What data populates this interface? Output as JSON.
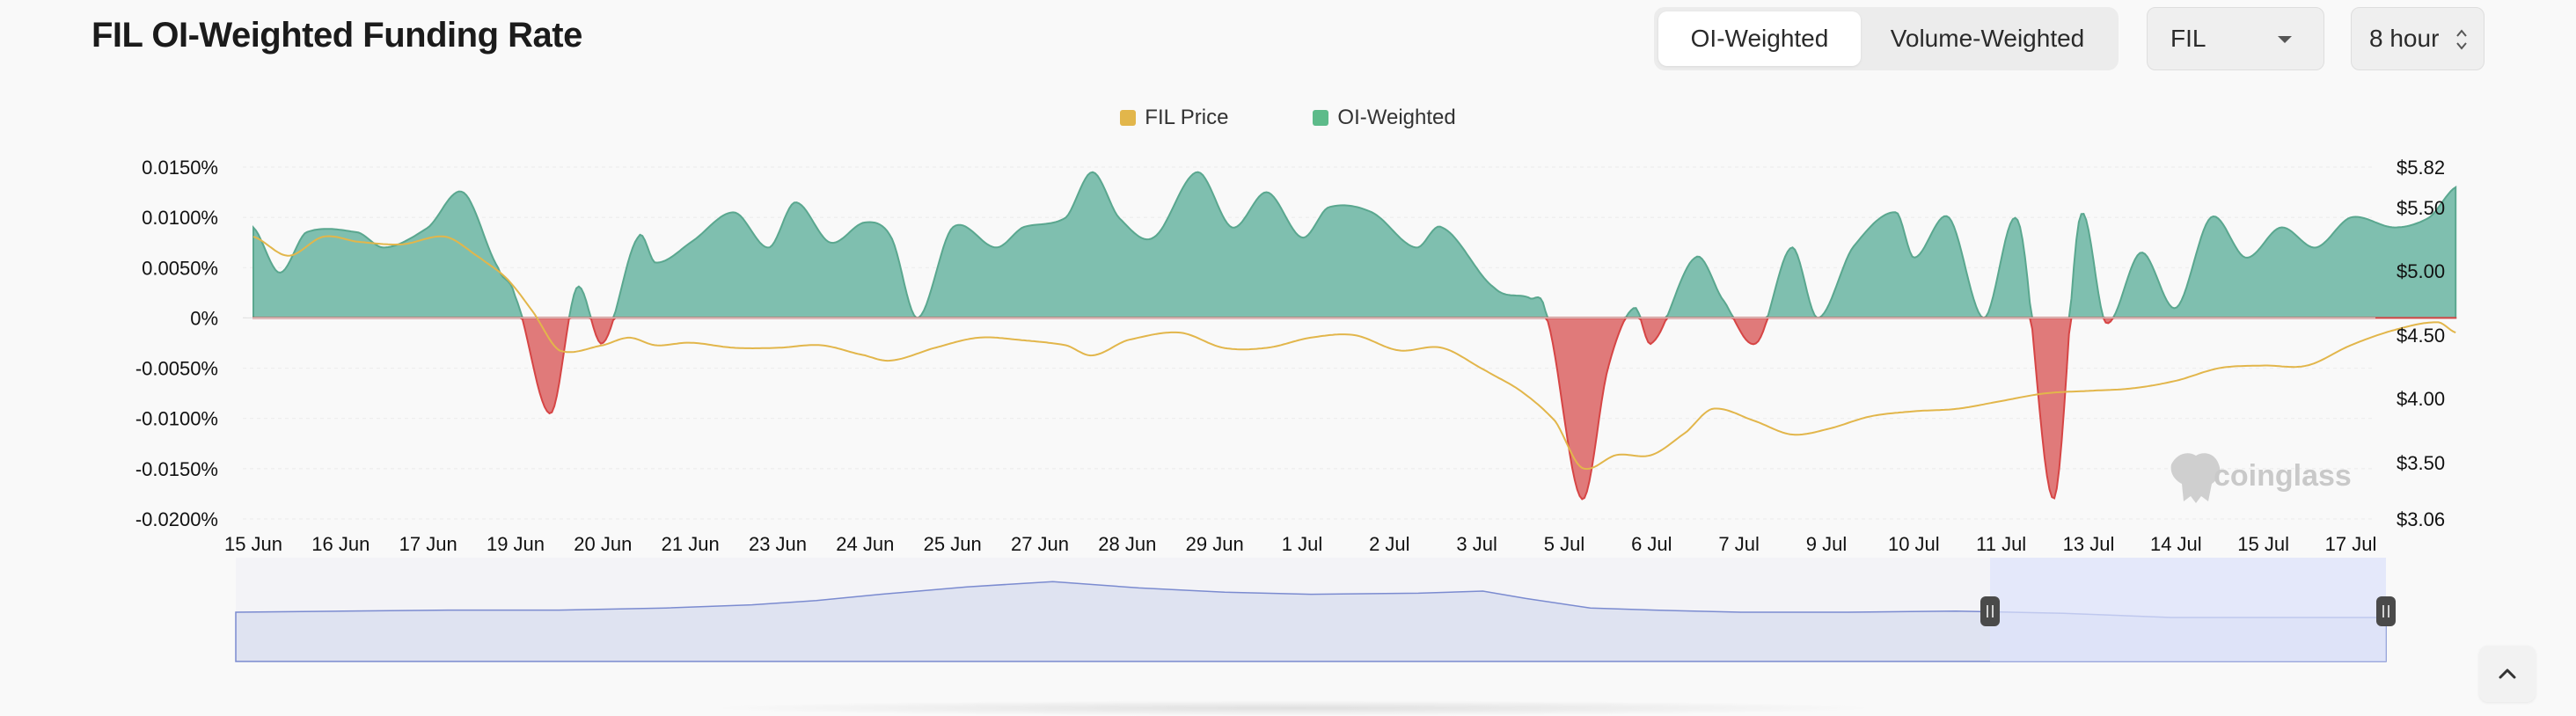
{
  "header": {
    "title": "FIL OI-Weighted Funding Rate",
    "toggle": {
      "options": [
        "OI-Weighted",
        "Volume-Weighted"
      ],
      "selected": "OI-Weighted"
    },
    "coin_select": "FIL",
    "interval_select": "8 hour"
  },
  "watermark": "coinglass",
  "colors": {
    "positive_fill": "#7fbfaf",
    "positive_line": "#5aa78f",
    "negative_fill": "#e07a7a",
    "negative_line": "#d64545",
    "price_line": "#e2b64b",
    "navigator_fill": "#dfe3f1",
    "navigator_line": "#7b8bd0",
    "navigator_window": "#dde2fb"
  },
  "icons": {
    "coin_caret": "caret-down-icon",
    "interval_stepper": "up-down-stepper-icon",
    "scroll_top": "chevron-up-icon",
    "logo": "coinglass-logo-icon"
  },
  "chart_data": {
    "type": "area",
    "legend": [
      {
        "name": "FIL Price",
        "color": "#e2b64b"
      },
      {
        "name": "OI-Weighted",
        "color": "#5dbb8a"
      }
    ],
    "x": [
      "15 Jun",
      "16 Jun",
      "17 Jun",
      "19 Jun",
      "20 Jun",
      "21 Jun",
      "23 Jun",
      "24 Jun",
      "25 Jun",
      "27 Jun",
      "28 Jun",
      "29 Jun",
      "1 Jul",
      "2 Jul",
      "3 Jul",
      "5 Jul",
      "6 Jul",
      "7 Jul",
      "9 Jul",
      "10 Jul",
      "11 Jul",
      "13 Jul",
      "14 Jul",
      "15 Jul",
      "17 Jul"
    ],
    "y_left_ticks": [
      "0.0150%",
      "0.0100%",
      "0.0050%",
      "0%",
      "-0.0050%",
      "-0.0100%",
      "-0.0150%",
      "-0.0200%"
    ],
    "y_left_range": [
      -0.02,
      0.015
    ],
    "y_right_ticks": [
      "$5.82",
      "$5.50",
      "$5.00",
      "$4.50",
      "$4.00",
      "$3.50",
      "$3.06"
    ],
    "y_right_range": [
      3.06,
      5.82
    ],
    "series": [
      {
        "name": "OI-Weighted",
        "unit": "%",
        "points": [
          [
            0,
            0.009
          ],
          [
            0.3,
            0.0045
          ],
          [
            0.6,
            0.0085
          ],
          [
            1.2,
            0.0085
          ],
          [
            1.5,
            0.007
          ],
          [
            2.0,
            0.009
          ],
          [
            2.4,
            0.0125
          ],
          [
            2.8,
            0.005
          ],
          [
            3.0,
            0.002
          ],
          [
            3.4,
            -0.0095
          ],
          [
            3.7,
            0.003
          ],
          [
            4.0,
            -0.0025
          ],
          [
            4.4,
            0.008
          ],
          [
            4.6,
            0.0055
          ],
          [
            5.0,
            0.0075
          ],
          [
            5.5,
            0.0105
          ],
          [
            5.9,
            0.007
          ],
          [
            6.2,
            0.0115
          ],
          [
            6.6,
            0.0075
          ],
          [
            7.0,
            0.0095
          ],
          [
            7.3,
            0.008
          ],
          [
            7.6,
            0.0
          ],
          [
            8.0,
            0.009
          ],
          [
            8.5,
            0.007
          ],
          [
            8.8,
            0.009
          ],
          [
            9.3,
            0.01
          ],
          [
            9.6,
            0.0145
          ],
          [
            9.9,
            0.01
          ],
          [
            10.3,
            0.008
          ],
          [
            10.8,
            0.0145
          ],
          [
            11.2,
            0.009
          ],
          [
            11.6,
            0.0125
          ],
          [
            12.0,
            0.008
          ],
          [
            12.3,
            0.011
          ],
          [
            12.8,
            0.0105
          ],
          [
            13.3,
            0.007
          ],
          [
            13.6,
            0.009
          ],
          [
            14.2,
            0.003
          ],
          [
            14.6,
            0.002
          ],
          [
            14.8,
            0.0
          ],
          [
            15.2,
            -0.018
          ],
          [
            15.5,
            -0.005
          ],
          [
            15.8,
            0.001
          ],
          [
            16.0,
            -0.0025
          ],
          [
            16.5,
            0.006
          ],
          [
            16.8,
            0.002
          ],
          [
            17.2,
            -0.0025
          ],
          [
            17.6,
            0.007
          ],
          [
            17.9,
            0.0
          ],
          [
            18.3,
            0.007
          ],
          [
            18.8,
            0.0105
          ],
          [
            19.0,
            0.006
          ],
          [
            19.4,
            0.01
          ],
          [
            19.8,
            0.0
          ],
          [
            20.2,
            0.0095
          ],
          [
            20.6,
            -0.018
          ],
          [
            20.9,
            0.01
          ],
          [
            21.2,
            -0.0005
          ],
          [
            21.6,
            0.0065
          ],
          [
            22.0,
            0.001
          ],
          [
            22.4,
            0.01
          ],
          [
            22.8,
            0.006
          ],
          [
            23.2,
            0.009
          ],
          [
            23.6,
            0.007
          ],
          [
            24.0,
            0.01
          ],
          [
            24.5,
            0.009
          ],
          [
            24.9,
            0.01
          ],
          [
            25.2,
            0.013
          ]
        ]
      },
      {
        "name": "FIL Price",
        "unit": "$",
        "points": [
          [
            0,
            5.27
          ],
          [
            0.4,
            5.12
          ],
          [
            0.8,
            5.27
          ],
          [
            1.2,
            5.23
          ],
          [
            1.7,
            5.21
          ],
          [
            2.2,
            5.27
          ],
          [
            2.6,
            5.1
          ],
          [
            2.9,
            4.94
          ],
          [
            3.2,
            4.68
          ],
          [
            3.5,
            4.38
          ],
          [
            4.0,
            4.42
          ],
          [
            4.3,
            4.48
          ],
          [
            4.6,
            4.42
          ],
          [
            5.0,
            4.44
          ],
          [
            5.5,
            4.4
          ],
          [
            6.0,
            4.4
          ],
          [
            6.5,
            4.42
          ],
          [
            7.0,
            4.34
          ],
          [
            7.3,
            4.3
          ],
          [
            7.8,
            4.4
          ],
          [
            8.3,
            4.48
          ],
          [
            8.8,
            4.46
          ],
          [
            9.3,
            4.42
          ],
          [
            9.6,
            4.34
          ],
          [
            10.0,
            4.46
          ],
          [
            10.6,
            4.52
          ],
          [
            11.1,
            4.4
          ],
          [
            11.6,
            4.4
          ],
          [
            12.1,
            4.48
          ],
          [
            12.6,
            4.5
          ],
          [
            13.1,
            4.38
          ],
          [
            13.6,
            4.4
          ],
          [
            14.1,
            4.22
          ],
          [
            14.5,
            4.06
          ],
          [
            14.9,
            3.82
          ],
          [
            15.2,
            3.46
          ],
          [
            15.6,
            3.56
          ],
          [
            16.0,
            3.56
          ],
          [
            16.4,
            3.74
          ],
          [
            16.7,
            3.92
          ],
          [
            17.2,
            3.82
          ],
          [
            17.6,
            3.72
          ],
          [
            18.0,
            3.76
          ],
          [
            18.5,
            3.86
          ],
          [
            19.0,
            3.9
          ],
          [
            19.5,
            3.92
          ],
          [
            20.0,
            3.98
          ],
          [
            20.5,
            4.04
          ],
          [
            21.0,
            4.06
          ],
          [
            21.5,
            4.08
          ],
          [
            22.0,
            4.14
          ],
          [
            22.5,
            4.24
          ],
          [
            23.0,
            4.26
          ],
          [
            23.5,
            4.26
          ],
          [
            24.0,
            4.42
          ],
          [
            24.5,
            4.54
          ],
          [
            25.0,
            4.6
          ],
          [
            25.2,
            4.52
          ]
        ]
      }
    ]
  }
}
